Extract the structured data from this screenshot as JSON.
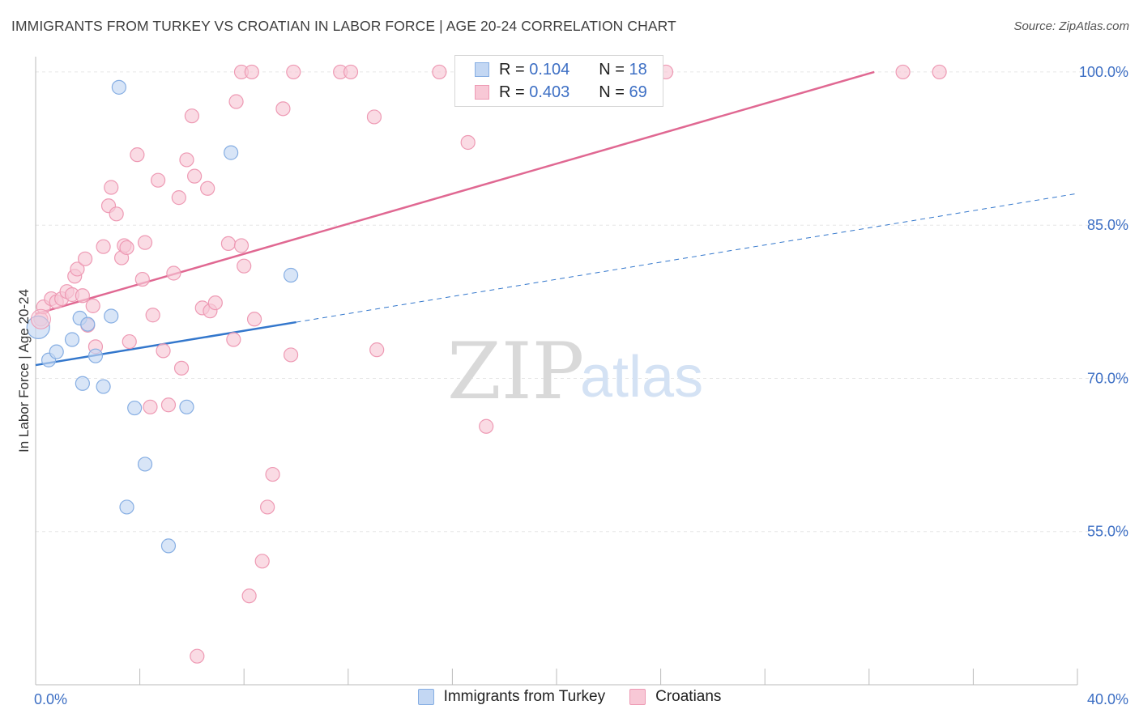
{
  "title": "IMMIGRANTS FROM TURKEY VS CROATIAN IN LABOR FORCE | AGE 20-24 CORRELATION CHART",
  "source": "Source: ZipAtlas.com",
  "watermark": {
    "zip": "ZIP",
    "atlas": "atlas"
  },
  "legend": {
    "r_label": "R =",
    "n_label": "N =",
    "series": [
      {
        "r": "0.104",
        "n": "18"
      },
      {
        "r": "0.403",
        "n": "69"
      }
    ]
  },
  "colors": {
    "turkey_fill": "#c3d7f3",
    "turkey_stroke": "#86aee3",
    "turkey_line": "#3377cc",
    "croatian_fill": "#f8c8d6",
    "croatian_stroke": "#ee9ab4",
    "croatian_line": "#e06892",
    "grid": "#e6e6e6",
    "tick_label": "#3d6fc4"
  },
  "chart_data": {
    "type": "scatter",
    "ylabel": "In Labor Force | Age 20-24",
    "x_tick_labels": [
      "0.0%",
      "40.0%"
    ],
    "y_tick_labels": [
      "100.0%",
      "85.0%",
      "70.0%",
      "55.0%"
    ],
    "x_ticks": [
      0,
      40
    ],
    "y_ticks": [
      100,
      85,
      70,
      55
    ],
    "xlim": [
      0,
      40
    ],
    "ylim": [
      40,
      101.5
    ],
    "grid": true,
    "legend_placement": "top-center",
    "series": [
      {
        "name": "Immigrants from Turkey",
        "color": "#c3d7f3",
        "points": [
          [
            0.1,
            75
          ],
          [
            0.5,
            71.8
          ],
          [
            0.8,
            72.6
          ],
          [
            1.4,
            73.8
          ],
          [
            1.7,
            75.9
          ],
          [
            1.8,
            69.5
          ],
          [
            2.0,
            75.3
          ],
          [
            2.3,
            72.2
          ],
          [
            2.6,
            69.2
          ],
          [
            2.9,
            76.1
          ],
          [
            3.2,
            98.5
          ],
          [
            3.8,
            67.1
          ],
          [
            4.2,
            61.6
          ],
          [
            3.5,
            57.4
          ],
          [
            5.1,
            53.6
          ],
          [
            5.8,
            67.2
          ],
          [
            7.5,
            92.1
          ],
          [
            9.8,
            80.1
          ]
        ],
        "trend": {
          "x0": 0,
          "y0": 71.3,
          "x1": 10,
          "y1": 75.5,
          "dash_to_x": 40,
          "dash_to_y": 88.1
        }
      },
      {
        "name": "Croatians",
        "color": "#f8c8d6",
        "points": [
          [
            0.2,
            75.8
          ],
          [
            0.3,
            77.0
          ],
          [
            0.6,
            77.8
          ],
          [
            0.8,
            77.5
          ],
          [
            1.0,
            77.8
          ],
          [
            1.2,
            78.5
          ],
          [
            1.4,
            78.2
          ],
          [
            1.5,
            80.0
          ],
          [
            1.6,
            80.7
          ],
          [
            1.8,
            78.1
          ],
          [
            1.9,
            81.7
          ],
          [
            2.0,
            75.2
          ],
          [
            2.2,
            77.1
          ],
          [
            2.3,
            73.1
          ],
          [
            2.6,
            82.9
          ],
          [
            2.8,
            86.9
          ],
          [
            2.9,
            88.7
          ],
          [
            3.1,
            86.1
          ],
          [
            3.3,
            81.8
          ],
          [
            3.4,
            83.0
          ],
          [
            3.5,
            82.8
          ],
          [
            3.6,
            73.6
          ],
          [
            3.9,
            91.9
          ],
          [
            4.1,
            79.7
          ],
          [
            4.2,
            83.3
          ],
          [
            4.5,
            76.2
          ],
          [
            4.7,
            89.4
          ],
          [
            4.9,
            72.7
          ],
          [
            4.4,
            67.2
          ],
          [
            5.1,
            67.4
          ],
          [
            5.3,
            80.3
          ],
          [
            5.5,
            87.7
          ],
          [
            5.6,
            71.0
          ],
          [
            5.8,
            91.4
          ],
          [
            6.0,
            95.7
          ],
          [
            6.1,
            89.8
          ],
          [
            6.6,
            88.6
          ],
          [
            6.4,
            76.9
          ],
          [
            6.7,
            76.6
          ],
          [
            6.9,
            77.4
          ],
          [
            6.2,
            42.8
          ],
          [
            7.4,
            83.2
          ],
          [
            7.6,
            73.8
          ],
          [
            7.7,
            97.1
          ],
          [
            7.9,
            83.0
          ],
          [
            8.0,
            81.0
          ],
          [
            8.2,
            48.7
          ],
          [
            8.4,
            75.8
          ],
          [
            8.7,
            52.1
          ],
          [
            8.9,
            57.4
          ],
          [
            9.1,
            60.6
          ],
          [
            9.5,
            96.4
          ],
          [
            9.8,
            72.3
          ],
          [
            7.9,
            100
          ],
          [
            8.3,
            100
          ],
          [
            9.9,
            100
          ],
          [
            11.7,
            100
          ],
          [
            12.1,
            100
          ],
          [
            15.5,
            100
          ],
          [
            13.0,
            95.6
          ],
          [
            13.1,
            72.8
          ],
          [
            16.6,
            93.1
          ],
          [
            17.3,
            65.3
          ],
          [
            20.8,
            100
          ],
          [
            21.3,
            100
          ],
          [
            24.2,
            100
          ],
          [
            33.3,
            100
          ],
          [
            34.7,
            100
          ],
          [
            19.4,
            100
          ]
        ],
        "trend": {
          "x0": 0,
          "y0": 76.3,
          "x1": 32.2,
          "y1": 100
        }
      }
    ]
  }
}
